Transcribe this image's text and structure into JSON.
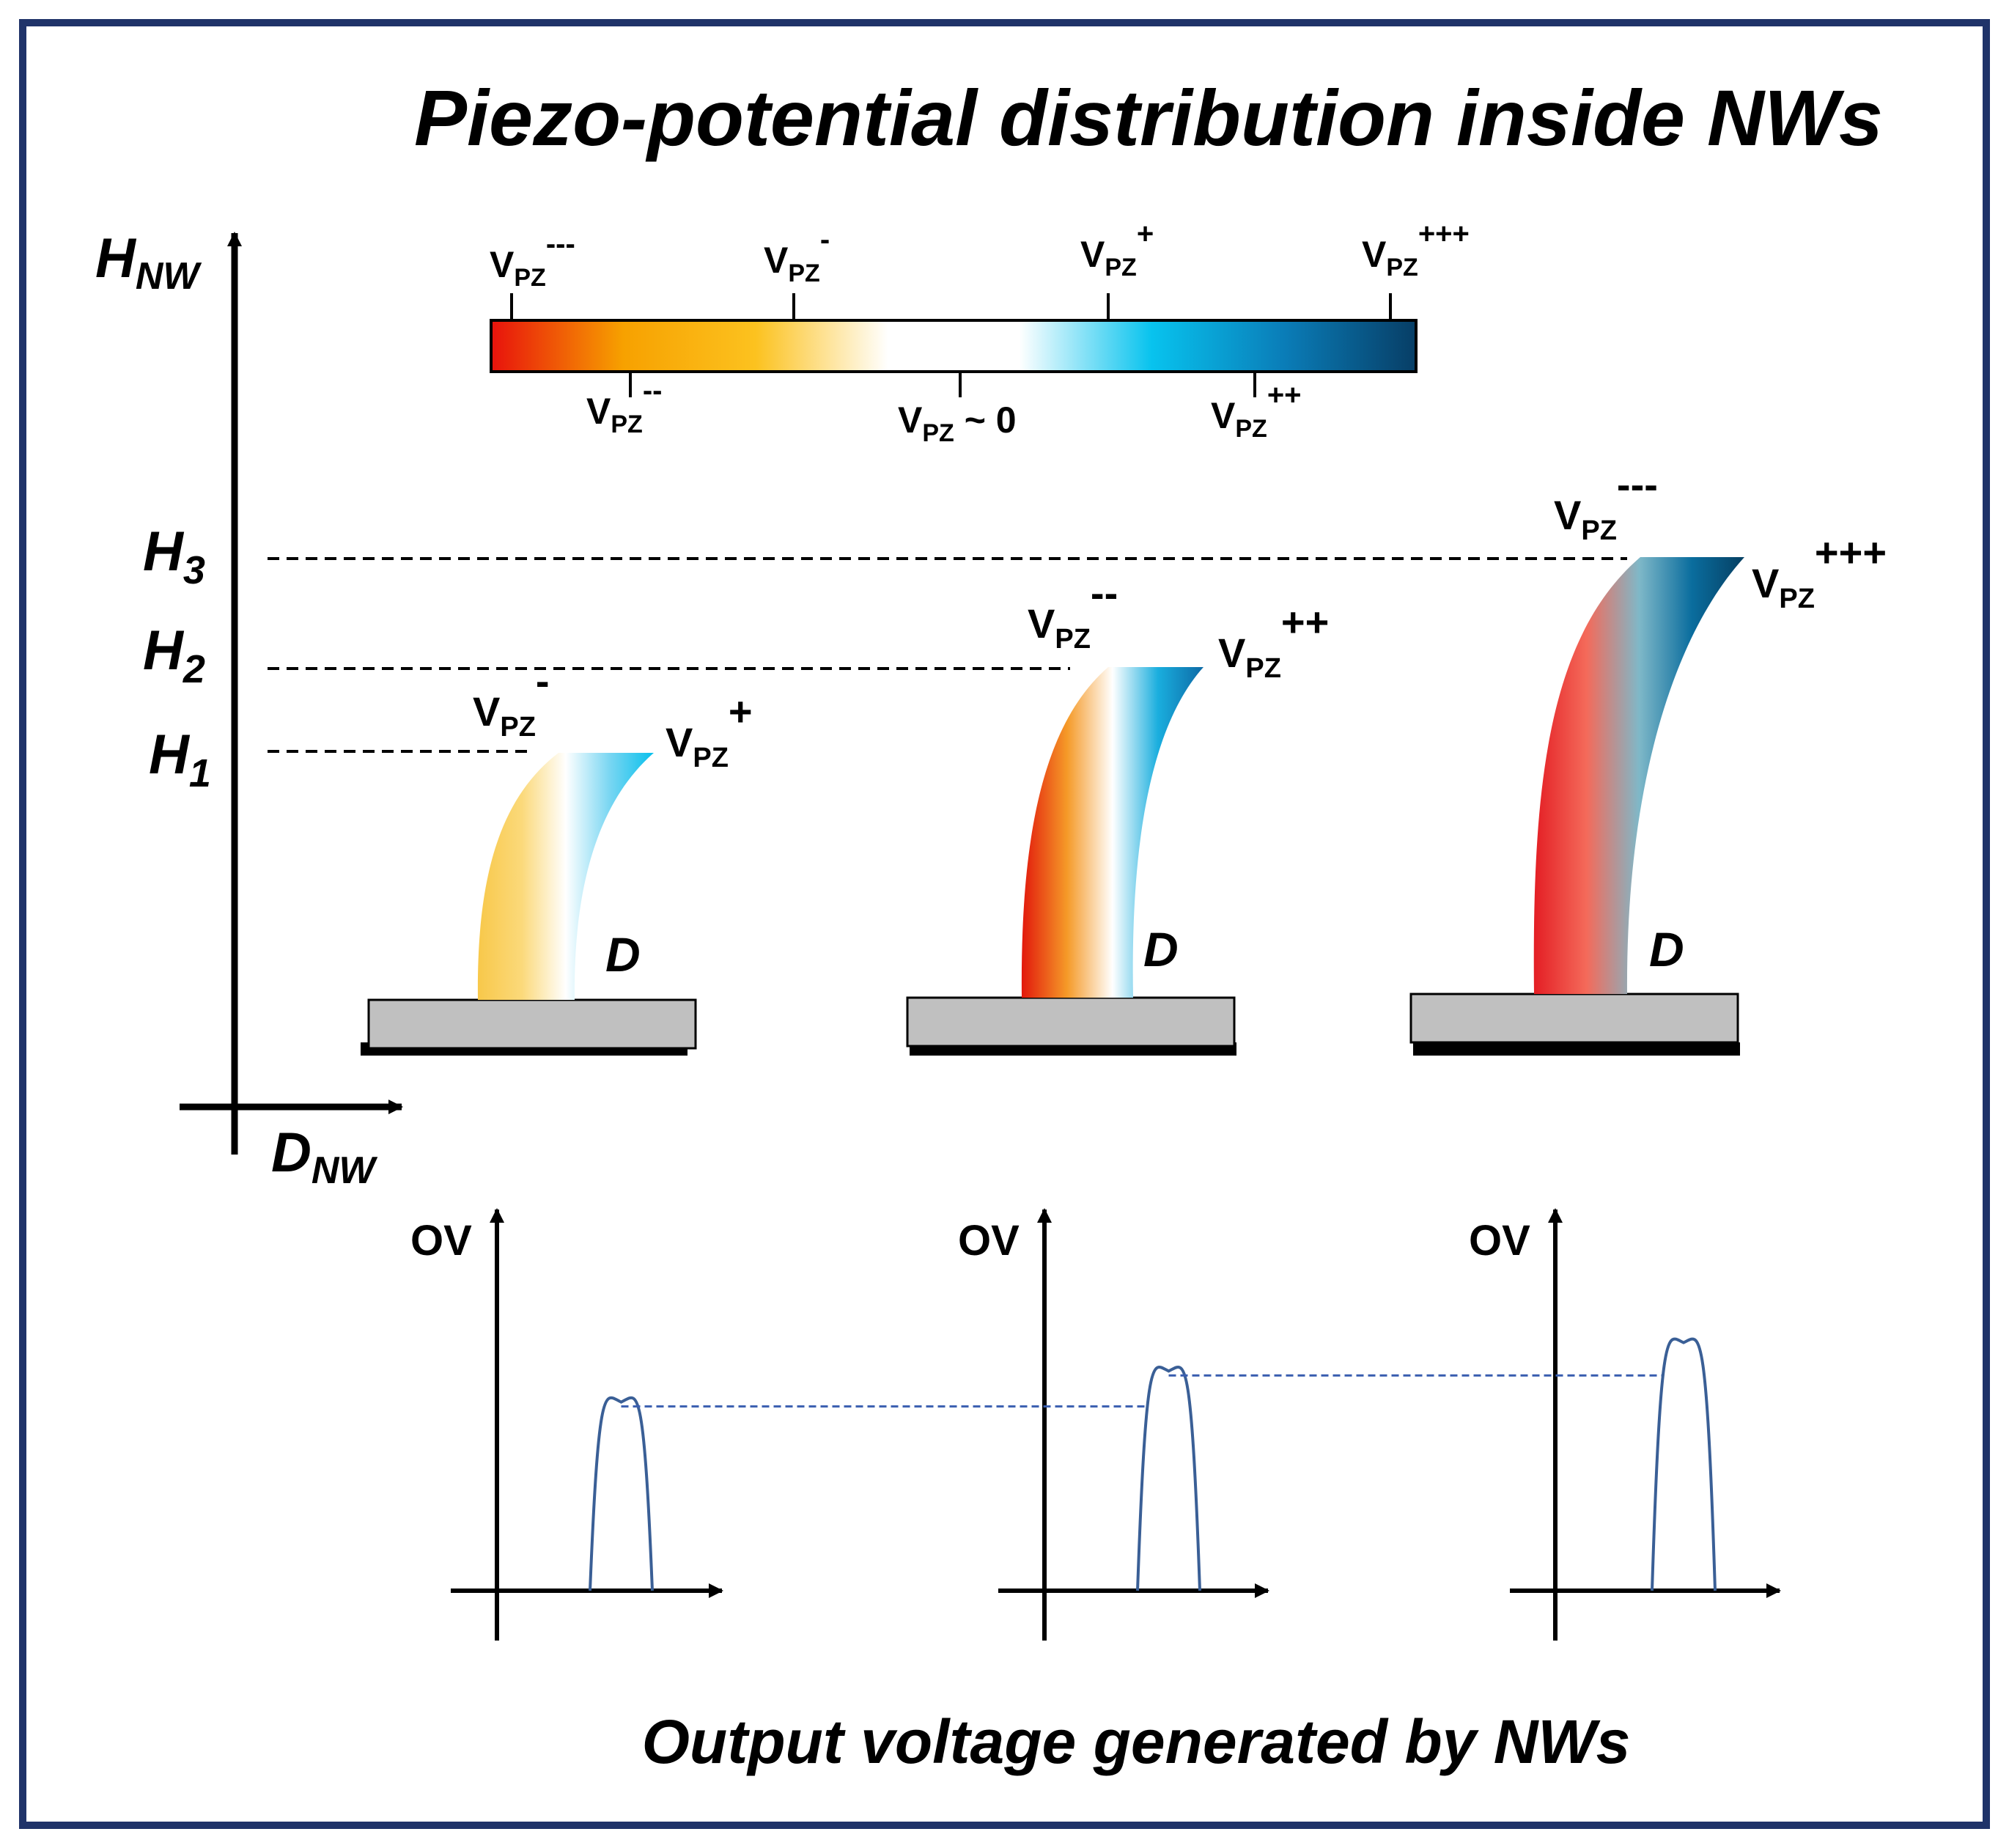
{
  "title": "Piezo-potential distribution inside NWs",
  "footer": "Output voltage generated by NWs",
  "axes": {
    "y_base": "H",
    "y_sub": "NW",
    "x_base": "D",
    "x_sub": "NW"
  },
  "height_labels": [
    {
      "base": "H",
      "sub": "3"
    },
    {
      "base": "H",
      "sub": "2"
    },
    {
      "base": "H",
      "sub": "1"
    }
  ],
  "colorbar": {
    "colors": [
      "#e8120c",
      "#f7a100",
      "#fcc21f",
      "#ffffff",
      "#ffffff",
      "#08c3ee",
      "#0a7db8",
      "#073e66"
    ],
    "top_labels": [
      {
        "base": "V",
        "sub": "PZ",
        "sup": "---"
      },
      {
        "base": "V",
        "sub": "PZ",
        "sup": "-"
      },
      {
        "base": "V",
        "sub": "PZ",
        "sup": "+"
      },
      {
        "base": "V",
        "sub": "PZ",
        "sup": "+++"
      }
    ],
    "bottom_labels": [
      {
        "base": "V",
        "sub": "PZ",
        "sup": "--"
      },
      {
        "base": "V",
        "sub": "PZ",
        "sup": "",
        "suffix": " ~ 0"
      },
      {
        "base": "V",
        "sub": "PZ",
        "sup": "++"
      }
    ]
  },
  "nanowires": [
    {
      "left_label": {
        "base": "V",
        "sub": "PZ",
        "sup": "-"
      },
      "right_label": {
        "base": "V",
        "sub": "PZ",
        "sup": "+"
      },
      "diameter_label": "D",
      "gradient": [
        "#f8c84a",
        "#fbd97a",
        "#ffffff",
        "#79d6f2",
        "#08c0ec"
      ]
    },
    {
      "left_label": {
        "base": "V",
        "sub": "PZ",
        "sup": "--"
      },
      "right_label": {
        "base": "V",
        "sub": "PZ",
        "sup": "++"
      },
      "diameter_label": "D",
      "gradient": [
        "#e2180c",
        "#f59a28",
        "#ffffff",
        "#1aaede",
        "#0d6aa6"
      ]
    },
    {
      "left_label": {
        "base": "V",
        "sub": "PZ",
        "sup": "---"
      },
      "right_label": {
        "base": "V",
        "sub": "PZ",
        "sup": "+++"
      },
      "diameter_label": "D",
      "gradient": [
        "#e41e24",
        "#f46a5a",
        "#7fb8c8",
        "#0a6d9e",
        "#063f62"
      ]
    }
  ],
  "output_plots": [
    {
      "y_label": "OV",
      "peak": 0.73
    },
    {
      "y_label": "OV",
      "peak": 0.85
    },
    {
      "y_label": "OV",
      "peak": 0.96
    }
  ],
  "colors": {
    "frame": "#1f3369",
    "axis": "#000000",
    "pulse": "#3a5f96",
    "dashed_link": "#3a5fb0",
    "substrate": "#c0c0c0"
  }
}
